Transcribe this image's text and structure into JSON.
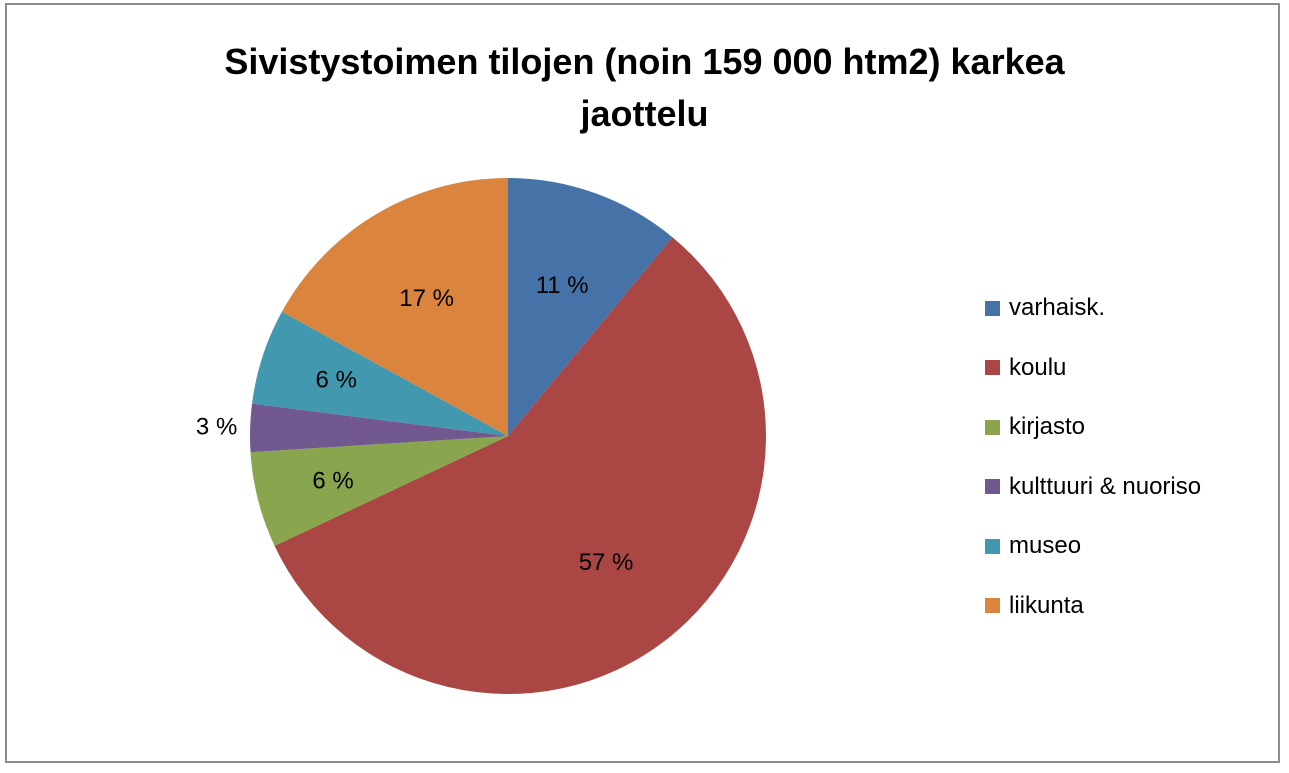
{
  "chart_data": {
    "type": "pie",
    "title_lines": [
      "Sivistystoimen tilojen (noin 159 000 htm2) karkea",
      "jaottelu"
    ],
    "categories": [
      "varhaisk.",
      "koulu",
      "kirjasto",
      "kulttuuri & nuoriso",
      "museo",
      "liikunta"
    ],
    "values": [
      11,
      57,
      6,
      3,
      6,
      17
    ],
    "data_labels": [
      "11 %",
      "57 %",
      "6 %",
      "3 %",
      "6 %",
      "17 %"
    ],
    "colors": [
      "#4572a7",
      "#aa4643",
      "#89a54e",
      "#71588f",
      "#4198af",
      "#db843d"
    ],
    "legend_position": "right",
    "start_angle": "12 o'clock",
    "direction": "clockwise"
  }
}
